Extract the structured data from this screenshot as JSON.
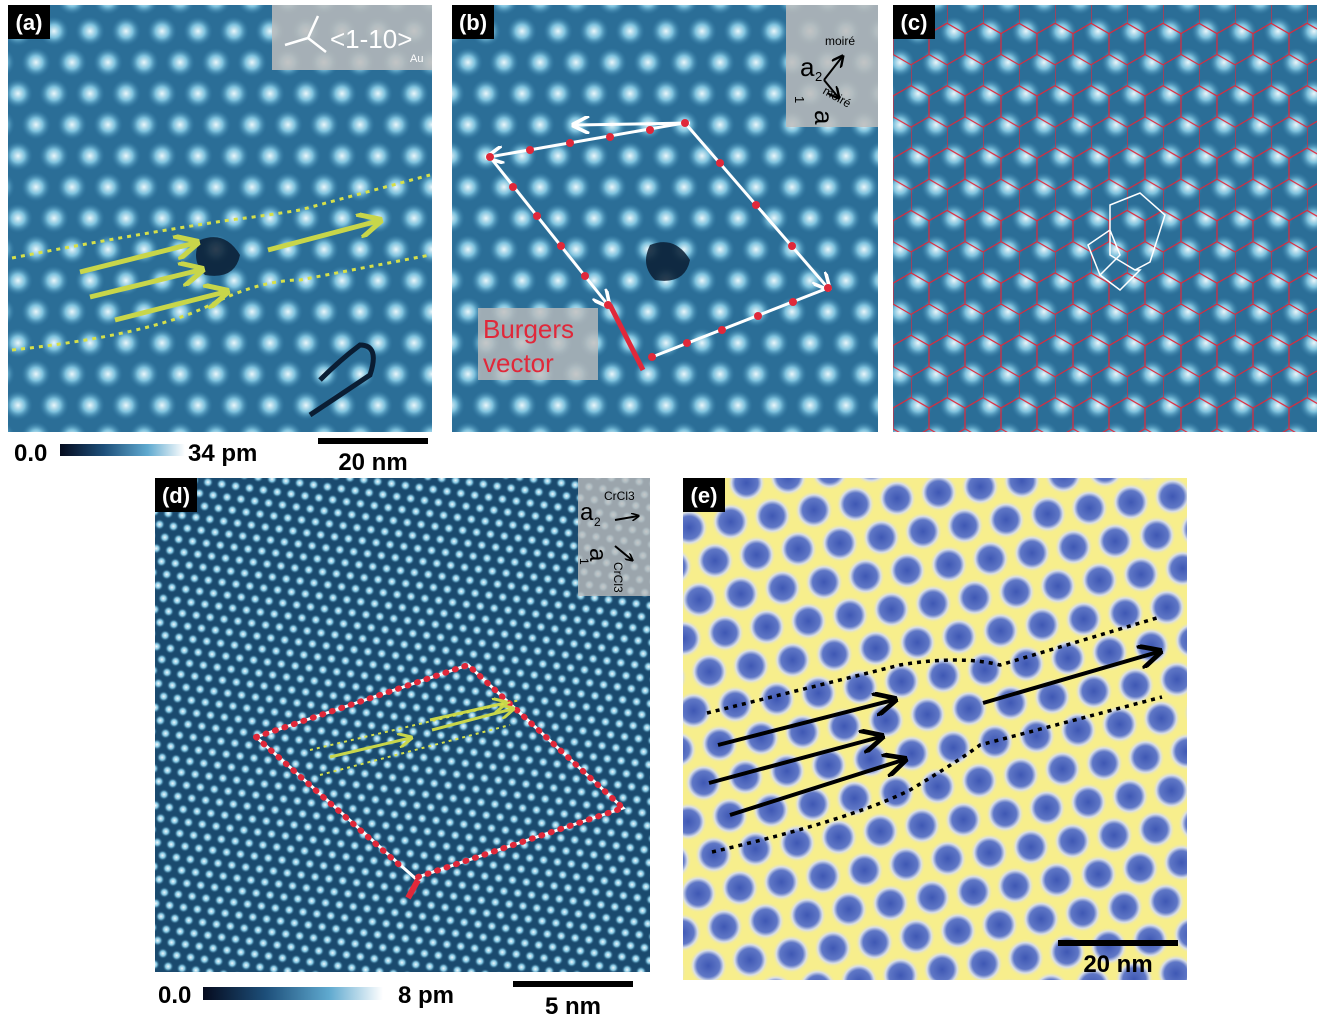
{
  "panel_a": {
    "label": "(a)",
    "direction": "<1-10>",
    "direction_subscript": "Au"
  },
  "panel_b": {
    "label": "(b)",
    "a2": "a",
    "a2_sub": "2",
    "a2_sup": "moiré",
    "a1": "a",
    "a1_sub": "1",
    "a1_sup": "moiré",
    "annotation_lines": [
      "Burgers",
      "vector"
    ]
  },
  "panel_c": {
    "label": "(c)"
  },
  "panel_d": {
    "label": "(d)",
    "a2": "a",
    "a2_sub": "2",
    "a2_sup": "CrCl3",
    "a1": "a",
    "a1_sub": "1",
    "a1_sup": "CrCl3"
  },
  "panel_e": {
    "label": "(e)",
    "scale_bar": "20 nm"
  },
  "colorbar_top": {
    "min": "0.0",
    "max": "34 pm",
    "scale_bar": "20 nm"
  },
  "colorbar_bottom": {
    "min": "0.0",
    "max": "8 pm",
    "scale_bar": "5 nm"
  }
}
